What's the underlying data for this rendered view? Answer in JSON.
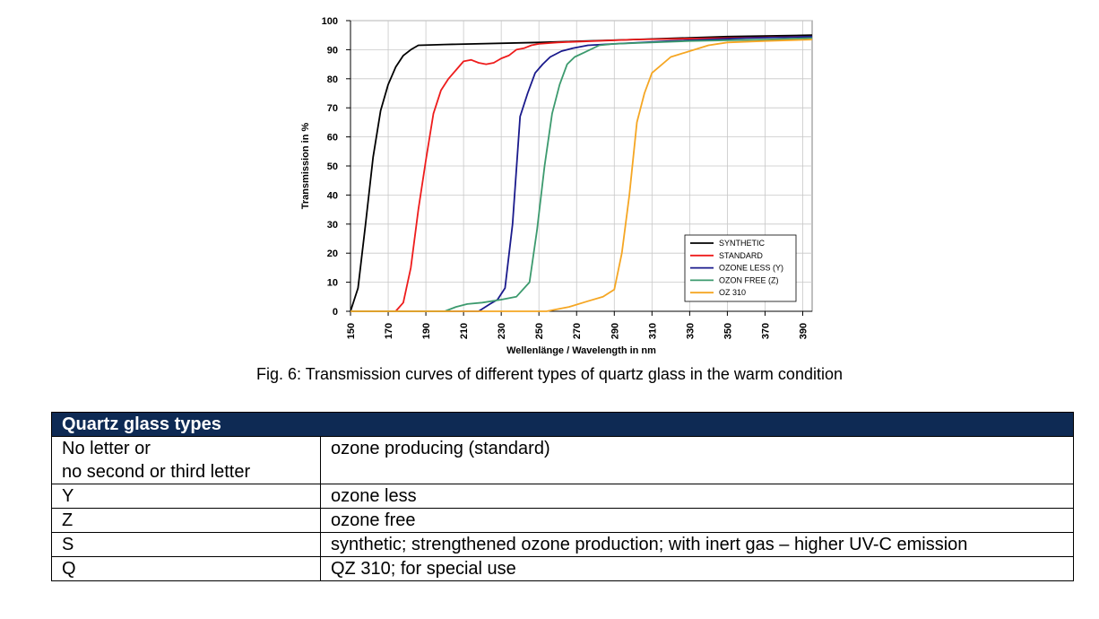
{
  "chart_data": {
    "type": "line",
    "title": "",
    "xlabel": "Wellenlänge / Wavelength in nm",
    "ylabel": "Transmission in %",
    "xlim": [
      150,
      395
    ],
    "ylim": [
      0,
      100
    ],
    "x_ticks": [
      150,
      170,
      190,
      210,
      230,
      250,
      270,
      290,
      310,
      330,
      350,
      370,
      390
    ],
    "y_ticks": [
      0,
      10,
      20,
      30,
      40,
      50,
      60,
      70,
      80,
      90,
      100
    ],
    "grid": true,
    "legend_position": "bottom-right",
    "series": [
      {
        "name": "SYNTHETIC",
        "color": "#000000",
        "points": [
          [
            150,
            0
          ],
          [
            154,
            8
          ],
          [
            158,
            30
          ],
          [
            162,
            53
          ],
          [
            166,
            69
          ],
          [
            170,
            78
          ],
          [
            174,
            84
          ],
          [
            178,
            88
          ],
          [
            182,
            90
          ],
          [
            186,
            91.5
          ],
          [
            200,
            91.8
          ],
          [
            250,
            92.5
          ],
          [
            300,
            93.5
          ],
          [
            350,
            94.5
          ],
          [
            395,
            95
          ]
        ]
      },
      {
        "name": "STANDARD",
        "color": "#ee1c1c",
        "points": [
          [
            150,
            0
          ],
          [
            174,
            0
          ],
          [
            178,
            3
          ],
          [
            182,
            15
          ],
          [
            186,
            35
          ],
          [
            190,
            52
          ],
          [
            194,
            68
          ],
          [
            198,
            76
          ],
          [
            202,
            80
          ],
          [
            206,
            83
          ],
          [
            210,
            86
          ],
          [
            214,
            86.5
          ],
          [
            218,
            85.5
          ],
          [
            222,
            85
          ],
          [
            226,
            85.5
          ],
          [
            230,
            87
          ],
          [
            234,
            88
          ],
          [
            238,
            90
          ],
          [
            242,
            90.5
          ],
          [
            246,
            91.5
          ],
          [
            250,
            92
          ],
          [
            260,
            92.5
          ],
          [
            300,
            93.5
          ],
          [
            350,
            94
          ],
          [
            395,
            94.5
          ]
        ]
      },
      {
        "name": "OZONE LESS (Y)",
        "color": "#1a1a8c",
        "points": [
          [
            150,
            0
          ],
          [
            218,
            0
          ],
          [
            224,
            2.5
          ],
          [
            228,
            4
          ],
          [
            232,
            8
          ],
          [
            236,
            30
          ],
          [
            240,
            67
          ],
          [
            244,
            75
          ],
          [
            248,
            82
          ],
          [
            252,
            85
          ],
          [
            256,
            87.5
          ],
          [
            262,
            89.5
          ],
          [
            268,
            90.5
          ],
          [
            276,
            91.5
          ],
          [
            290,
            92
          ],
          [
            320,
            93
          ],
          [
            360,
            94
          ],
          [
            395,
            94.5
          ]
        ]
      },
      {
        "name": "OZON FREE (Z)",
        "color": "#3c9a6e",
        "points": [
          [
            150,
            0
          ],
          [
            200,
            0
          ],
          [
            206,
            1.5
          ],
          [
            212,
            2.5
          ],
          [
            220,
            3
          ],
          [
            230,
            4
          ],
          [
            238,
            5
          ],
          [
            245,
            10
          ],
          [
            249,
            28
          ],
          [
            253,
            50
          ],
          [
            257,
            68
          ],
          [
            261,
            78
          ],
          [
            265,
            85
          ],
          [
            269,
            87.5
          ],
          [
            274,
            89
          ],
          [
            282,
            91.5
          ],
          [
            290,
            92
          ],
          [
            330,
            93
          ],
          [
            370,
            93.5
          ],
          [
            395,
            94
          ]
        ]
      },
      {
        "name": "OZ 310",
        "color": "#f5a623",
        "points": [
          [
            150,
            0
          ],
          [
            254,
            0
          ],
          [
            266,
            1.5
          ],
          [
            276,
            3.5
          ],
          [
            284,
            5
          ],
          [
            290,
            7.5
          ],
          [
            294,
            20
          ],
          [
            298,
            40
          ],
          [
            302,
            65
          ],
          [
            306,
            75
          ],
          [
            310,
            82
          ],
          [
            320,
            87.5
          ],
          [
            330,
            89.5
          ],
          [
            340,
            91.5
          ],
          [
            350,
            92.5
          ],
          [
            370,
            93
          ],
          [
            395,
            93.5
          ]
        ]
      }
    ]
  },
  "caption": "Fig. 6: Transmission curves of different types of quartz glass in the warm condition",
  "table": {
    "header": "Quartz glass types",
    "rows": [
      {
        "code": "No letter or\nno second or third letter",
        "description": "ozone producing (standard)"
      },
      {
        "code": "Y",
        "description": "ozone less"
      },
      {
        "code": "Z",
        "description": "ozone free"
      },
      {
        "code": "S",
        "description": "synthetic; strengthened ozone production; with inert gas – higher UV-C emission"
      },
      {
        "code": "Q",
        "description": "QZ 310; for special use"
      }
    ]
  }
}
